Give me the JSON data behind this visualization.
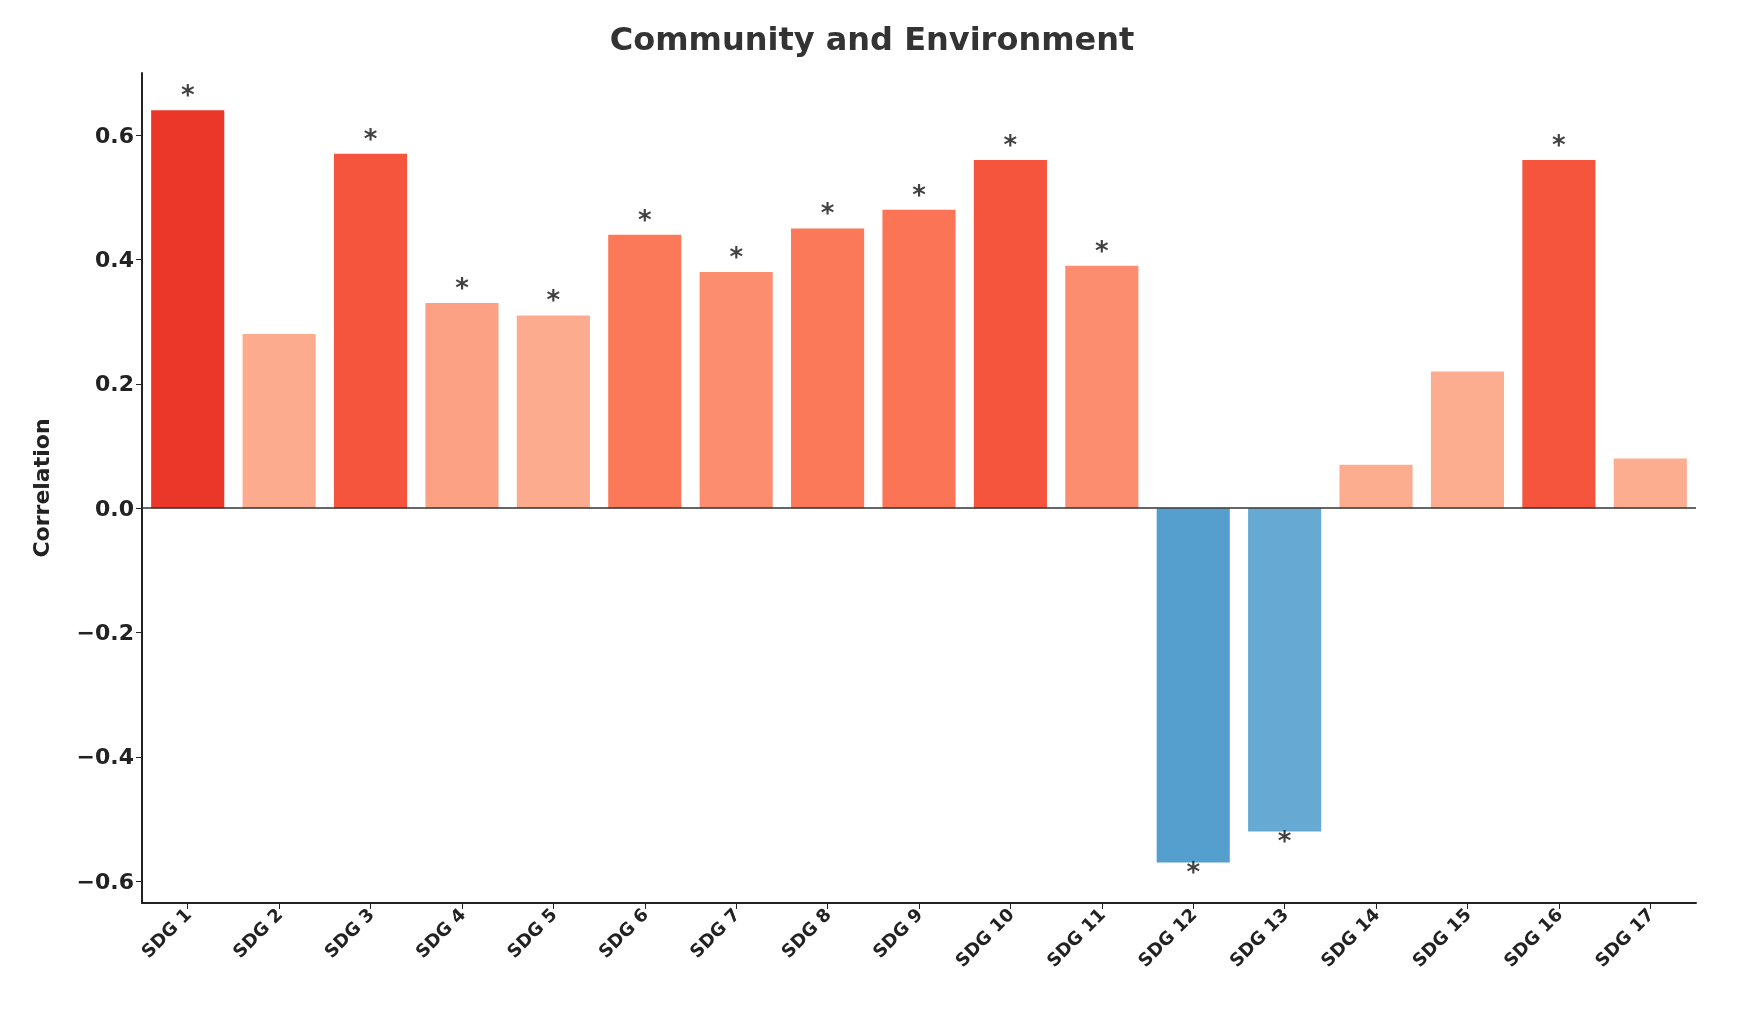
{
  "chart_data": {
    "type": "bar",
    "title": "Community and Environment",
    "ylabel": "Correlation",
    "categories": [
      "SDG 1",
      "SDG 2",
      "SDG 3",
      "SDG 4",
      "SDG 5",
      "SDG 6",
      "SDG 7",
      "SDG 8",
      "SDG 9",
      "SDG 10",
      "SDG 11",
      "SDG 12",
      "SDG 13",
      "SDG 14",
      "SDG 15",
      "SDG 16",
      "SDG 17"
    ],
    "values": [
      0.64,
      0.28,
      0.57,
      0.33,
      0.31,
      0.44,
      0.38,
      0.45,
      0.48,
      0.56,
      0.39,
      -0.57,
      -0.52,
      0.07,
      0.22,
      0.56,
      0.08
    ],
    "colors": [
      "#ea372a",
      "#fcab8f",
      "#f5553c",
      "#fca183",
      "#fcab8f",
      "#fb7858",
      "#fc8d6f",
      "#fb7858",
      "#fb7456",
      "#f5553c",
      "#fc8d6f",
      "#559fcf",
      "#66aad4",
      "#fcad90",
      "#fcad90",
      "#f5553c",
      "#fcad90"
    ],
    "ylim": [
      -0.635,
      0.7
    ],
    "yticks": [
      {
        "value": -0.6,
        "label": "−0.6"
      },
      {
        "value": -0.4,
        "label": "−0.4"
      },
      {
        "value": -0.2,
        "label": "−0.2"
      },
      {
        "value": 0,
        "label": "0.0"
      },
      {
        "value": 0.2,
        "label": "0.2"
      },
      {
        "value": 0.4,
        "label": "0.4"
      },
      {
        "value": 0.6,
        "label": "0.6"
      }
    ],
    "ref_lines": [
      {
        "axis": "y",
        "value": 0,
        "color": "#333333"
      }
    ],
    "annotations": [
      {
        "text": "*",
        "x": "SDG 1",
        "y": 0.64
      },
      {
        "text": "*",
        "x": "SDG 3",
        "y": 0.57
      },
      {
        "text": "*",
        "x": "SDG 4",
        "y": 0.33
      },
      {
        "text": "*",
        "x": "SDG 5",
        "y": 0.31
      },
      {
        "text": "*",
        "x": "SDG 6",
        "y": 0.44
      },
      {
        "text": "*",
        "x": "SDG 7",
        "y": 0.38
      },
      {
        "text": "*",
        "x": "SDG 8",
        "y": 0.45
      },
      {
        "text": "*",
        "x": "SDG 9",
        "y": 0.48
      },
      {
        "text": "*",
        "x": "SDG 10",
        "y": 0.56
      },
      {
        "text": "*",
        "x": "SDG 11",
        "y": 0.39
      },
      {
        "text": "*",
        "x": "SDG 12",
        "y": -0.57
      },
      {
        "text": "*",
        "x": "SDG 13",
        "y": -0.52
      },
      {
        "text": "*",
        "x": "SDG 16",
        "y": 0.56
      }
    ],
    "grid": false
  }
}
